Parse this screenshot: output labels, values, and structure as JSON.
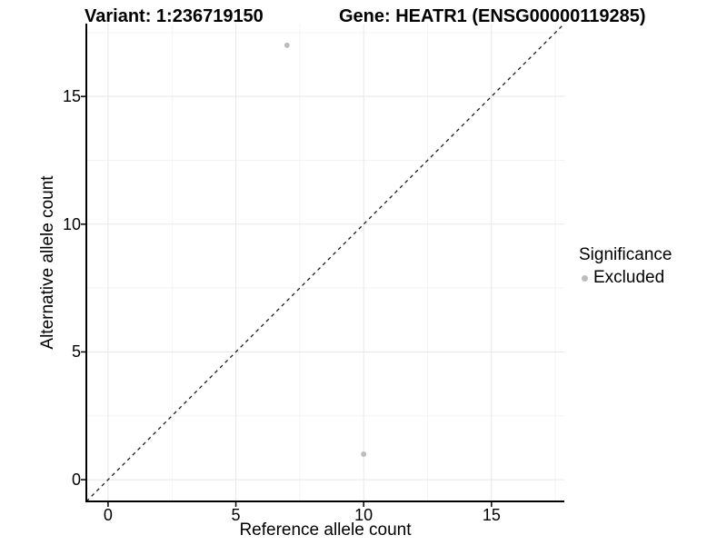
{
  "figure": {
    "title_variant": "Variant: 1:236719150",
    "title_gene": "Gene: HEATR1 (ENSG00000119285)"
  },
  "legend": {
    "title": "Significance",
    "items": [
      {
        "label": "Excluded",
        "color": "#bdbdbd"
      }
    ]
  },
  "chart_data": {
    "type": "scatter",
    "title": "Variant: 1:236719150   Gene: HEATR1 (ENSG00000119285)",
    "xlabel": "Reference allele count",
    "ylabel": "Alternative allele count",
    "xlim": [
      -0.85,
      17.85
    ],
    "ylim": [
      -0.85,
      17.85
    ],
    "x_ticks": [
      0,
      5,
      10,
      15
    ],
    "y_ticks": [
      0,
      5,
      10,
      15
    ],
    "x_minor_ticks": [
      2.5,
      7.5,
      12.5,
      17.5
    ],
    "y_minor_ticks": [
      2.5,
      7.5,
      12.5,
      17.5
    ],
    "grid": "major+minor",
    "legend_position": "right-middle",
    "identity_line": {
      "shown": true,
      "style": "dashed",
      "equation": "y = x"
    },
    "series": [
      {
        "name": "Excluded",
        "color": "#bdbdbd",
        "points": [
          [
            7,
            17
          ],
          [
            10,
            1
          ]
        ]
      }
    ]
  },
  "style": {
    "major_grid_color": "#e7e7e7",
    "minor_grid_color": "#f3f3f3",
    "axis_color": "#000000",
    "identity_line_color": "#1a1a1a",
    "point_color": "#bdbdbd"
  }
}
